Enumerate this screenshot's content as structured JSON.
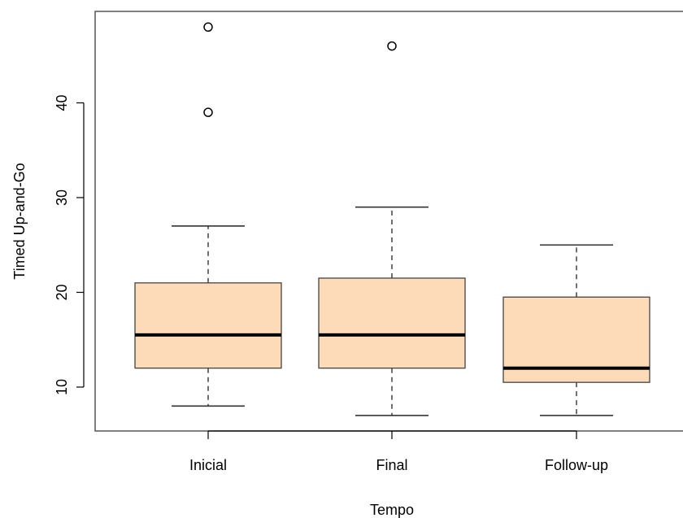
{
  "chart_data": {
    "type": "boxplot",
    "title": "",
    "xlabel": "Tempo",
    "ylabel": "Timed Up-and-Go",
    "ylim": [
      6,
      50
    ],
    "yticks": [
      10,
      20,
      30,
      40
    ],
    "grid": false,
    "legend": "none",
    "box_fill": "#FDDBB8",
    "categories": [
      "Inicial",
      "Final",
      "Follow-up"
    ],
    "boxes": [
      {
        "category": "Inicial",
        "whisker_low": 8,
        "q1": 12,
        "median": 15.5,
        "q3": 21,
        "whisker_high": 27,
        "outliers": [
          39,
          48
        ]
      },
      {
        "category": "Final",
        "whisker_low": 7,
        "q1": 12,
        "median": 15.5,
        "q3": 21.5,
        "whisker_high": 29,
        "outliers": [
          46
        ]
      },
      {
        "category": "Follow-up",
        "whisker_low": 7,
        "q1": 10.5,
        "median": 12,
        "q3": 19.5,
        "whisker_high": 25,
        "outliers": []
      }
    ]
  }
}
